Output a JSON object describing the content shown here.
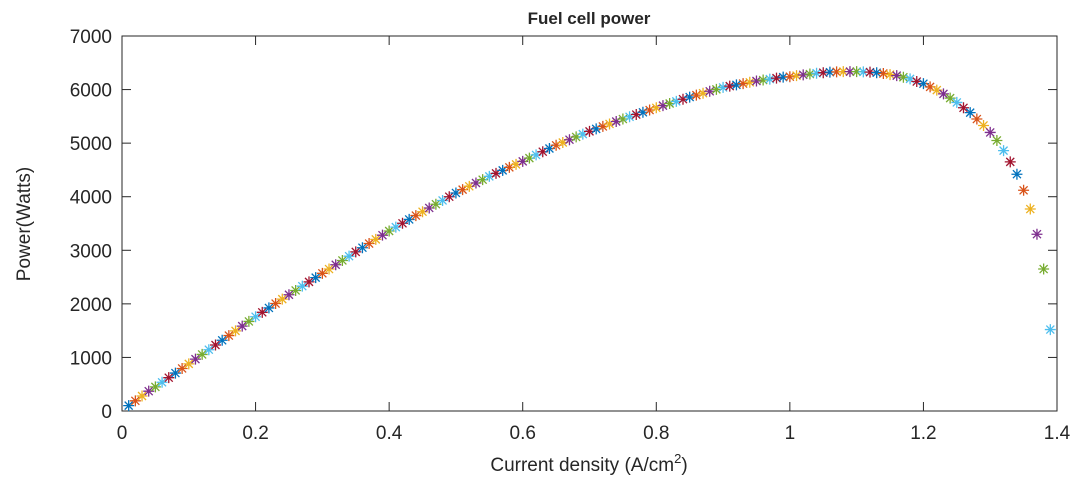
{
  "chart_data": {
    "type": "scatter",
    "title": "Fuel cell power",
    "x_label": "Current density (A/cm",
    "x_label_superscript": "2",
    "x_label_end": ")",
    "y_label": "Power(Watts)",
    "marker": "asterisk",
    "color_cycle": [
      "#0072BD",
      "#D95319",
      "#EDB120",
      "#7E2F8E",
      "#77AC30",
      "#4DBEEE",
      "#A2142F"
    ],
    "xlim": [
      0,
      1.4
    ],
    "xticks": [
      0,
      0.2,
      0.4,
      0.6,
      0.8,
      1,
      1.2,
      1.4
    ],
    "ylim": [
      0,
      7000
    ],
    "yticks": [
      0,
      1000,
      2000,
      3000,
      4000,
      5000,
      6000,
      7000
    ],
    "grid": false,
    "x": [
      0.01,
      0.02,
      0.03,
      0.04,
      0.05,
      0.06,
      0.07,
      0.08,
      0.09,
      0.1,
      0.11,
      0.12,
      0.13,
      0.14,
      0.15,
      0.16,
      0.17,
      0.18,
      0.19,
      0.2,
      0.21,
      0.22,
      0.23,
      0.24,
      0.25,
      0.26,
      0.27,
      0.28,
      0.29,
      0.3,
      0.31,
      0.32,
      0.33,
      0.34,
      0.35,
      0.36,
      0.37,
      0.38,
      0.39,
      0.4,
      0.41,
      0.42,
      0.43,
      0.44,
      0.45,
      0.46,
      0.47,
      0.48,
      0.49,
      0.5,
      0.51,
      0.52,
      0.53,
      0.54,
      0.55,
      0.56,
      0.57,
      0.58,
      0.59,
      0.6,
      0.61,
      0.62,
      0.63,
      0.64,
      0.65,
      0.66,
      0.67,
      0.68,
      0.69,
      0.7,
      0.71,
      0.72,
      0.73,
      0.74,
      0.75,
      0.76,
      0.77,
      0.78,
      0.79,
      0.8,
      0.81,
      0.82,
      0.83,
      0.84,
      0.85,
      0.86,
      0.87,
      0.88,
      0.89,
      0.9,
      0.91,
      0.92,
      0.93,
      0.94,
      0.95,
      0.96,
      0.97,
      0.98,
      0.99,
      1.0,
      1.01,
      1.02,
      1.03,
      1.04,
      1.05,
      1.06,
      1.07,
      1.08,
      1.09,
      1.1,
      1.11,
      1.12,
      1.13,
      1.14,
      1.15,
      1.16,
      1.17,
      1.18,
      1.19,
      1.2,
      1.21,
      1.22,
      1.23,
      1.24,
      1.25,
      1.26,
      1.27,
      1.28,
      1.29,
      1.3,
      1.31,
      1.32,
      1.33,
      1.34,
      1.35,
      1.36,
      1.37,
      1.38,
      1.39
    ],
    "values": [
      100,
      190,
      280,
      370,
      450,
      536,
      622,
      708,
      794,
      880,
      968,
      1056,
      1144,
      1232,
      1320,
      1408,
      1496,
      1584,
      1672,
      1760,
      1842,
      1924,
      2006,
      2088,
      2170,
      2250,
      2330,
      2410,
      2490,
      2570,
      2650,
      2730,
      2810,
      2890,
      2970,
      3048,
      3126,
      3204,
      3282,
      3360,
      3432,
      3504,
      3576,
      3648,
      3720,
      3790,
      3860,
      3930,
      4000,
      4070,
      4132,
      4194,
      4256,
      4318,
      4380,
      4436,
      4492,
      4548,
      4604,
      4660,
      4720,
      4780,
      4840,
      4900,
      4960,
      5012,
      5064,
      5116,
      5168,
      5220,
      5266,
      5312,
      5358,
      5404,
      5450,
      5492,
      5534,
      5576,
      5618,
      5660,
      5700,
      5740,
      5780,
      5820,
      5860,
      5896,
      5932,
      5968,
      6004,
      6040,
      6064,
      6088,
      6112,
      6136,
      6160,
      6178,
      6196,
      6214,
      6232,
      6240,
      6260,
      6275,
      6290,
      6305,
      6315,
      6325,
      6330,
      6335,
      6335,
      6335,
      6330,
      6325,
      6315,
      6300,
      6280,
      6260,
      6230,
      6200,
      6150,
      6110,
      6050,
      5990,
      5920,
      5840,
      5760,
      5660,
      5570,
      5450,
      5330,
      5200,
      5050,
      4860,
      4650,
      4420,
      4120,
      3770,
      3300,
      2650,
      1520
    ]
  }
}
